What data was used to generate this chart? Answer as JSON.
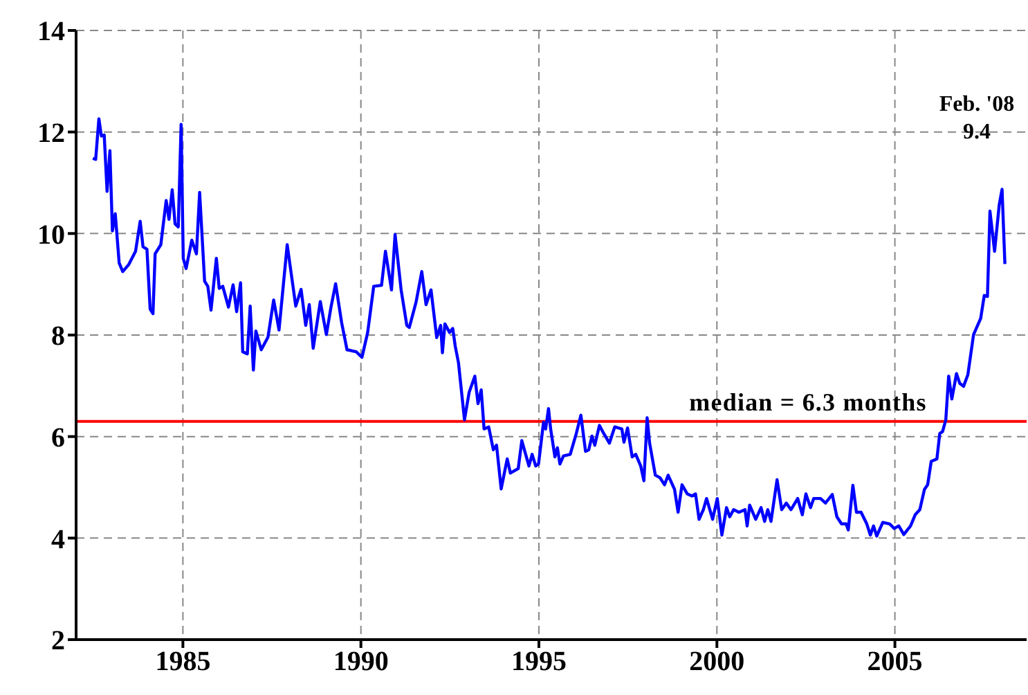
{
  "chart_data": {
    "type": "line",
    "xlim": [
      1982,
      2008.7
    ],
    "xticks": [
      1985,
      1990,
      1995,
      2000,
      2005
    ],
    "ylim": [
      2,
      14
    ],
    "yticks": [
      2,
      4,
      6,
      8,
      10,
      12,
      14
    ],
    "grid": true,
    "marker": "none",
    "line_style": "solid",
    "series": [
      {
        "color": "#0000ff",
        "x": [
          1982.47,
          1982.55,
          1982.64,
          1982.71,
          1982.79,
          1982.87,
          1982.95,
          1983.02,
          1983.1,
          1983.21,
          1983.31,
          1983.48,
          1983.67,
          1983.8,
          1983.88,
          1983.99,
          1984.08,
          1984.16,
          1984.22,
          1984.38,
          1984.53,
          1984.61,
          1984.7,
          1984.78,
          1984.87,
          1984.95,
          1985.01,
          1985.09,
          1985.25,
          1985.38,
          1985.47,
          1985.61,
          1985.7,
          1985.79,
          1985.94,
          1986.02,
          1986.12,
          1986.28,
          1986.41,
          1986.51,
          1986.62,
          1986.68,
          1986.81,
          1986.89,
          1986.98,
          1987.05,
          1987.2,
          1987.39,
          1987.55,
          1987.7,
          1987.93,
          1988.17,
          1988.32,
          1988.45,
          1988.55,
          1988.66,
          1988.86,
          1989.03,
          1989.16,
          1989.29,
          1989.46,
          1989.61,
          1989.87,
          1990.03,
          1990.19,
          1990.36,
          1990.58,
          1990.69,
          1990.86,
          1990.96,
          1991.13,
          1991.29,
          1991.36,
          1991.55,
          1991.71,
          1991.83,
          1991.97,
          1992.13,
          1992.24,
          1992.29,
          1992.36,
          1992.49,
          1992.58,
          1992.65,
          1992.74,
          1992.91,
          1993.04,
          1993.2,
          1993.29,
          1993.38,
          1993.46,
          1993.59,
          1993.72,
          1993.81,
          1993.94,
          1994.11,
          1994.2,
          1994.42,
          1994.52,
          1994.72,
          1994.81,
          1994.91,
          1994.99,
          1995.13,
          1995.19,
          1995.27,
          1995.33,
          1995.45,
          1995.52,
          1995.59,
          1995.69,
          1995.88,
          1996.05,
          1996.18,
          1996.31,
          1996.4,
          1996.49,
          1996.57,
          1996.7,
          1996.79,
          1996.98,
          1997.13,
          1997.33,
          1997.39,
          1997.49,
          1997.62,
          1997.72,
          1997.86,
          1997.95,
          1998.04,
          1998.11,
          1998.27,
          1998.4,
          1998.53,
          1998.63,
          1998.81,
          1998.91,
          1999.02,
          1999.17,
          1999.3,
          1999.4,
          1999.5,
          1999.62,
          1999.71,
          1999.88,
          2000.01,
          2000.14,
          2000.27,
          2000.36,
          2000.47,
          2000.62,
          2000.79,
          2000.85,
          2000.92,
          2001.09,
          2001.24,
          2001.34,
          2001.43,
          2001.52,
          2001.69,
          2001.82,
          2001.95,
          2002.08,
          2002.27,
          2002.4,
          2002.5,
          2002.63,
          2002.72,
          2002.91,
          2003.05,
          2003.24,
          2003.37,
          2003.5,
          2003.63,
          2003.69,
          2003.82,
          2003.92,
          2004.05,
          2004.21,
          2004.31,
          2004.4,
          2004.49,
          2004.66,
          2004.85,
          2004.98,
          2005.11,
          2005.25,
          2005.44,
          2005.57,
          2005.7,
          2005.83,
          2005.92,
          2006.02,
          2006.18,
          2006.26,
          2006.34,
          2006.43,
          2006.51,
          2006.6,
          2006.73,
          2006.82,
          2006.93,
          2007.05,
          2007.21,
          2007.41,
          2007.51,
          2007.6,
          2007.67,
          2007.8,
          2007.93,
          2008.01,
          2008.09
        ],
        "values": [
          11.48,
          11.46,
          12.26,
          11.92,
          11.94,
          10.83,
          11.63,
          10.05,
          10.39,
          9.42,
          9.25,
          9.39,
          9.65,
          10.24,
          9.74,
          9.69,
          8.51,
          8.42,
          9.6,
          9.78,
          10.65,
          10.28,
          10.86,
          10.19,
          10.13,
          12.15,
          9.51,
          9.31,
          9.87,
          9.6,
          10.81,
          9.06,
          8.96,
          8.49,
          9.51,
          8.92,
          8.96,
          8.55,
          8.99,
          8.46,
          9.03,
          7.67,
          7.63,
          8.57,
          7.31,
          8.08,
          7.71,
          7.96,
          8.69,
          8.1,
          9.78,
          8.57,
          8.9,
          8.19,
          8.6,
          7.74,
          8.66,
          8.01,
          8.55,
          9.01,
          8.24,
          7.71,
          7.67,
          7.56,
          8.05,
          8.96,
          8.98,
          9.65,
          8.89,
          9.98,
          8.89,
          8.19,
          8.15,
          8.65,
          9.25,
          8.6,
          8.89,
          7.95,
          8.19,
          7.65,
          8.22,
          8.05,
          8.13,
          7.78,
          7.46,
          6.33,
          6.87,
          7.19,
          6.65,
          6.92,
          6.15,
          6.19,
          5.74,
          5.83,
          4.97,
          5.56,
          5.28,
          5.37,
          5.92,
          5.42,
          5.65,
          5.42,
          5.46,
          6.28,
          6.15,
          6.55,
          6.15,
          5.6,
          5.78,
          5.46,
          5.62,
          5.65,
          6.06,
          6.42,
          5.71,
          5.74,
          6.01,
          5.83,
          6.22,
          6.1,
          5.87,
          6.19,
          6.15,
          5.89,
          6.17,
          5.6,
          5.65,
          5.42,
          5.13,
          6.37,
          5.87,
          5.24,
          5.19,
          5.05,
          5.24,
          4.96,
          4.51,
          5.05,
          4.87,
          4.83,
          4.87,
          4.37,
          4.56,
          4.78,
          4.37,
          4.78,
          4.06,
          4.6,
          4.42,
          4.56,
          4.51,
          4.56,
          4.24,
          4.65,
          4.37,
          4.6,
          4.33,
          4.56,
          4.33,
          5.15,
          4.56,
          4.69,
          4.56,
          4.78,
          4.46,
          4.87,
          4.6,
          4.78,
          4.78,
          4.69,
          4.86,
          4.42,
          4.28,
          4.28,
          4.16,
          5.04,
          4.51,
          4.51,
          4.28,
          4.06,
          4.24,
          4.04,
          4.31,
          4.28,
          4.19,
          4.24,
          4.07,
          4.24,
          4.46,
          4.56,
          4.96,
          5.05,
          5.51,
          5.56,
          6.06,
          6.1,
          6.33,
          7.19,
          6.74,
          7.24,
          7.05,
          6.99,
          7.22,
          8.01,
          8.33,
          8.78,
          8.76,
          10.44,
          9.65,
          10.56,
          10.87,
          9.4
        ]
      }
    ],
    "ref_lines": [
      {
        "axis": "y",
        "value": 6.3,
        "label": "median = 6.3 months",
        "color": "#ff0000"
      }
    ],
    "annotations": [
      "Feb. '08\n9.4"
    ]
  }
}
